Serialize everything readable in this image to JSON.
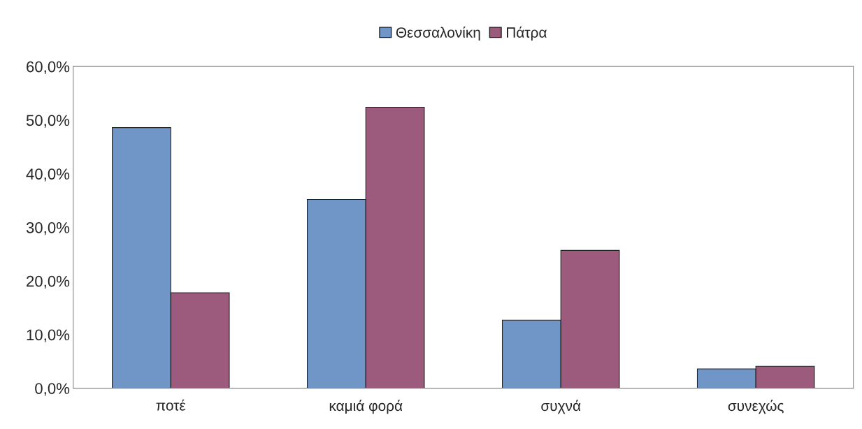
{
  "chart_data": {
    "type": "bar",
    "categories": [
      "ποτέ",
      "καμιά φορά",
      "συχνά",
      "συνεχώς"
    ],
    "series": [
      {
        "name": "Θεσσαλονίκη",
        "color": "#7096c8",
        "values": [
          48.6,
          35.2,
          12.7,
          3.6
        ]
      },
      {
        "name": "Πάτρα",
        "color": "#9c5a7c",
        "values": [
          17.8,
          52.4,
          25.7,
          4.1
        ]
      }
    ],
    "ylim": [
      0,
      60
    ],
    "yticks": [
      {
        "value": 0,
        "label": "0,0%"
      },
      {
        "value": 10,
        "label": "10,0%"
      },
      {
        "value": 20,
        "label": "20,0%"
      },
      {
        "value": 30,
        "label": "30,0%"
      },
      {
        "value": 40,
        "label": "40,0%"
      },
      {
        "value": 50,
        "label": "50,0%"
      },
      {
        "value": 60,
        "label": "60,0%"
      }
    ],
    "grid": false,
    "legend": "top"
  }
}
